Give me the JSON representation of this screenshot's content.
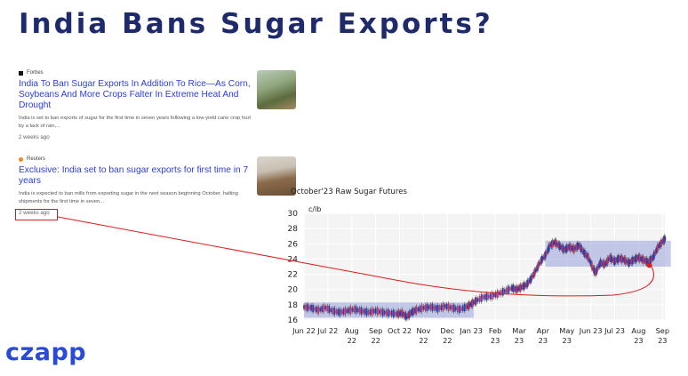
{
  "page": {
    "title": "India Bans Sugar Exports?"
  },
  "news": [
    {
      "source": "Forbes",
      "headline": "India To Ban Sugar Exports In Addition To Rice—As Corn, Soybeans And More Crops Falter In Extreme Heat And Drought",
      "snippet": "India is set to ban exports of sugar for the first time in seven years following a low-yield cane crop hurt by a lack of rain,...",
      "age": "2 weeks ago"
    },
    {
      "source": "Reuters",
      "headline": "Exclusive: India set to ban sugar exports for first time in 7 years",
      "snippet": "India is expected to ban mills from exporting sugar in the next season beginning October, halting shipments for the first time in seven...",
      "age": "2 weeks ago"
    }
  ],
  "brand": {
    "logo": "czapp"
  },
  "chart_data": {
    "type": "line",
    "title": "October'23 Raw Sugar Futures",
    "ylabel": "c/lb",
    "ylim": [
      16,
      30
    ],
    "yticks": [
      16,
      18,
      20,
      22,
      24,
      26,
      28,
      30
    ],
    "xticks": [
      {
        "label": [
          "Jun 22",
          ""
        ],
        "m": 0
      },
      {
        "label": [
          "Jul 22",
          ""
        ],
        "m": 1
      },
      {
        "label": [
          "Aug",
          "22"
        ],
        "m": 2
      },
      {
        "label": [
          "Sep",
          "22"
        ],
        "m": 3
      },
      {
        "label": [
          "Oct 22",
          ""
        ],
        "m": 4
      },
      {
        "label": [
          "Nov",
          "22"
        ],
        "m": 5
      },
      {
        "label": [
          "Dec",
          "22"
        ],
        "m": 6
      },
      {
        "label": [
          "Jan 23",
          ""
        ],
        "m": 7
      },
      {
        "label": [
          "Feb",
          "23"
        ],
        "m": 8
      },
      {
        "label": [
          "Mar",
          "23"
        ],
        "m": 9
      },
      {
        "label": [
          "Apr",
          "23"
        ],
        "m": 10
      },
      {
        "label": [
          "May",
          "23"
        ],
        "m": 11
      },
      {
        "label": [
          "Jun 23",
          ""
        ],
        "m": 12
      },
      {
        "label": [
          "Jul 23",
          ""
        ],
        "m": 13
      },
      {
        "label": [
          "Aug",
          "23"
        ],
        "m": 14
      },
      {
        "label": [
          "Sep",
          "23"
        ],
        "m": 15
      }
    ],
    "series": [
      {
        "points": [
          [
            0.0,
            17.7
          ],
          [
            0.3,
            17.6
          ],
          [
            0.6,
            17.3
          ],
          [
            0.9,
            17.6
          ],
          [
            1.2,
            17.2
          ],
          [
            1.5,
            17.0
          ],
          [
            1.8,
            17.2
          ],
          [
            2.1,
            17.4
          ],
          [
            2.4,
            17.2
          ],
          [
            2.7,
            17.0
          ],
          [
            3.0,
            17.2
          ],
          [
            3.3,
            17.0
          ],
          [
            3.6,
            16.9
          ],
          [
            3.9,
            16.8
          ],
          [
            4.1,
            16.9
          ],
          [
            4.3,
            16.4
          ],
          [
            4.5,
            17.0
          ],
          [
            4.7,
            17.3
          ],
          [
            5.0,
            17.6
          ],
          [
            5.3,
            17.7
          ],
          [
            5.6,
            17.5
          ],
          [
            5.9,
            17.8
          ],
          [
            6.2,
            17.6
          ],
          [
            6.5,
            17.4
          ],
          [
            6.8,
            17.7
          ],
          [
            7.0,
            18.1
          ],
          [
            7.2,
            18.5
          ],
          [
            7.5,
            19.0
          ],
          [
            7.8,
            19.1
          ],
          [
            8.1,
            19.4
          ],
          [
            8.4,
            19.8
          ],
          [
            8.7,
            20.2
          ],
          [
            8.9,
            20.0
          ],
          [
            9.1,
            20.3
          ],
          [
            9.3,
            20.6
          ],
          [
            9.5,
            21.4
          ],
          [
            9.7,
            22.5
          ],
          [
            9.9,
            23.7
          ],
          [
            10.1,
            24.5
          ],
          [
            10.3,
            25.8
          ],
          [
            10.5,
            26.2
          ],
          [
            10.7,
            25.7
          ],
          [
            10.9,
            25.2
          ],
          [
            11.1,
            25.6
          ],
          [
            11.3,
            25.3
          ],
          [
            11.5,
            25.8
          ],
          [
            11.7,
            24.9
          ],
          [
            11.9,
            24.2
          ],
          [
            12.1,
            22.7
          ],
          [
            12.2,
            22.2
          ],
          [
            12.4,
            23.5
          ],
          [
            12.6,
            23.3
          ],
          [
            12.8,
            24.2
          ],
          [
            13.0,
            23.7
          ],
          [
            13.2,
            24.1
          ],
          [
            13.4,
            23.9
          ],
          [
            13.6,
            23.5
          ],
          [
            13.8,
            23.9
          ],
          [
            14.0,
            24.2
          ],
          [
            14.2,
            23.9
          ],
          [
            14.4,
            23.6
          ],
          [
            14.6,
            24.2
          ],
          [
            14.8,
            25.5
          ],
          [
            15.0,
            26.3
          ],
          [
            15.15,
            26.8
          ]
        ]
      }
    ],
    "ranges": [
      {
        "x": [
          0.0,
          7.1
        ],
        "y": [
          16.3,
          18.3
        ]
      },
      {
        "x": [
          10.1,
          15.35
        ],
        "y": [
          23.0,
          26.4
        ]
      }
    ],
    "annotation": {
      "x": 14.45,
      "y": 23.2,
      "color": "#e01818"
    }
  }
}
